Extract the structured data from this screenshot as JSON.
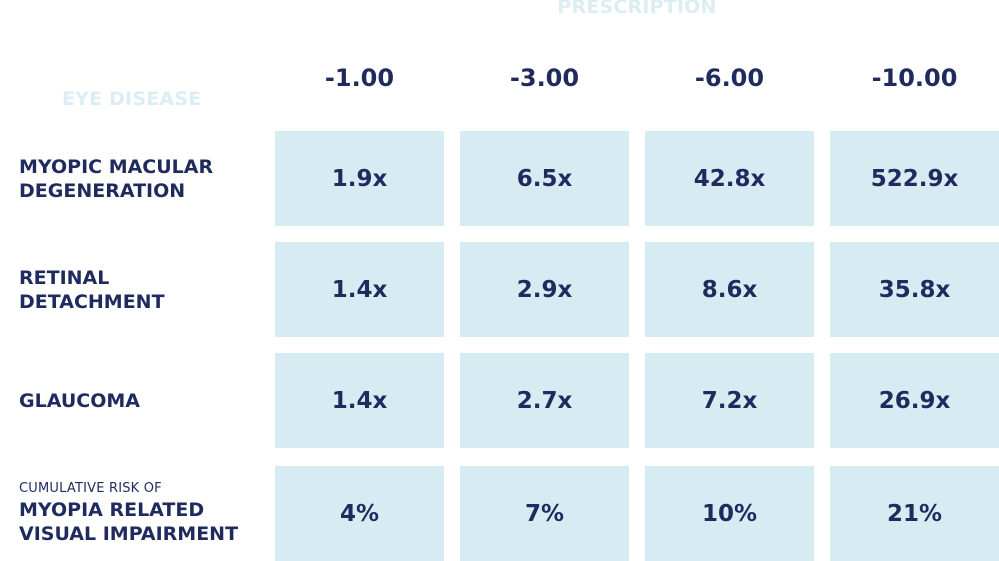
{
  "header": {
    "prescription": "PRESCRIPTION",
    "eye_disease": "EYE DISEASE"
  },
  "columns": [
    "-1.00",
    "-3.00",
    "-6.00",
    "-10.00"
  ],
  "rows": [
    {
      "label_line1": "MYOPIC MACULAR",
      "label_line2": "DEGENERATION",
      "values": [
        "1.9x",
        "6.5x",
        "42.8x",
        "522.9x"
      ]
    },
    {
      "label_line1": "RETINAL",
      "label_line2": "DETACHMENT",
      "values": [
        "1.4x",
        "2.9x",
        "8.6x",
        "35.8x"
      ]
    },
    {
      "label_line1": "GLAUCOMA",
      "values": [
        "1.4x",
        "2.7x",
        "7.2x",
        "26.9x"
      ]
    },
    {
      "label_small": "CUMULATIVE RISK OF",
      "label_line1": "MYOPIA RELATED",
      "label_line2": "VISUAL IMPAIRMENT",
      "values": [
        "4%",
        "7%",
        "10%",
        "21%"
      ]
    }
  ],
  "colors": {
    "text": "#1f2b5e",
    "cell_background": "#d7ecf2",
    "faded_header": "#dcedf3"
  }
}
